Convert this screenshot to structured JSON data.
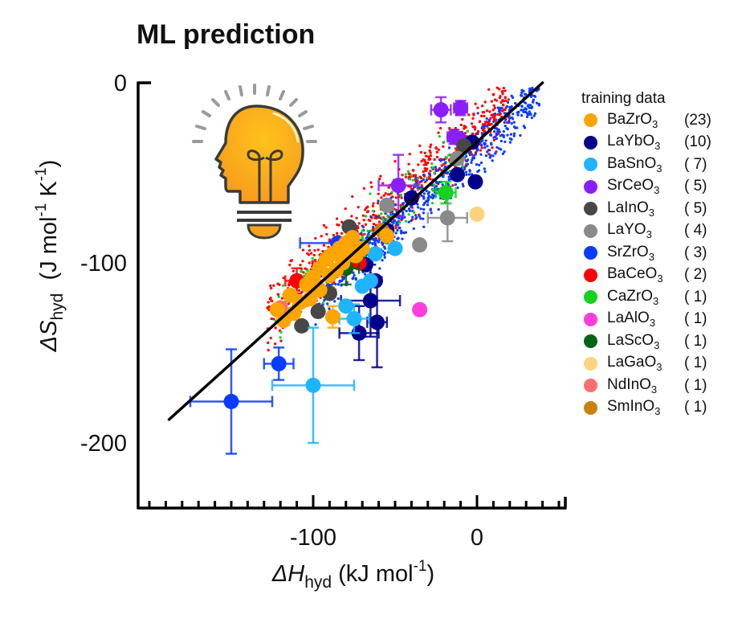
{
  "chart_data": {
    "type": "scatter",
    "title": "ML prediction",
    "xlabel": {
      "symbol": "ΔH",
      "subscript": "hyd",
      "unit": " (kJ mol",
      "unit_sup": "-1",
      "unit_close": ")"
    },
    "ylabel": {
      "symbol": "ΔS",
      "subscript": "hyd",
      "unit": "  (J mol",
      "unit_sup1": "-1",
      "unit_mid": " K",
      "unit_sup2": "-1",
      "unit_close": ")"
    },
    "xlim": [
      -207,
      54
    ],
    "ylim": [
      -236,
      0
    ],
    "x_ticks": [
      {
        "value": -100,
        "label": "-100"
      },
      {
        "value": 0,
        "label": "0"
      }
    ],
    "y_ticks": [
      {
        "value": 0,
        "label": "0"
      },
      {
        "value": -100,
        "label": "-100"
      },
      {
        "value": -200,
        "label": "-200"
      }
    ],
    "x_minor_step": 10,
    "y_minor_step": 10,
    "grid": false,
    "fit_line": {
      "x": [
        -188,
        40
      ],
      "y": [
        -187,
        0
      ],
      "color": "#000000"
    },
    "legend": {
      "title": "training data",
      "placement": "right",
      "entries": [
        {
          "formula": "BaZrO",
          "sub": "3",
          "count": "(23)",
          "color": "#FFA500"
        },
        {
          "formula": "LaYbO",
          "sub": "3",
          "count": "(10)",
          "color": "#00008B"
        },
        {
          "formula": "BaSnO",
          "sub": "3",
          "count": "( 7)",
          "color": "#1EB4FF"
        },
        {
          "formula": "SrCeO",
          "sub": "3",
          "count": "( 5)",
          "color": "#8B1EFF"
        },
        {
          "formula": "LaInO",
          "sub": "3",
          "count": "( 5)",
          "color": "#474747"
        },
        {
          "formula": "LaYO",
          "sub": "3",
          "count": "( 4)",
          "color": "#8A8A8A"
        },
        {
          "formula": "SrZrO",
          "sub": "3",
          "count": "( 3)",
          "color": "#0A3CFF"
        },
        {
          "formula": "BaCeO",
          "sub": "3",
          "count": "( 2)",
          "color": "#FF0000"
        },
        {
          "formula": "CaZrO",
          "sub": "3",
          "count": "( 1)",
          "color": "#14D21E"
        },
        {
          "formula": "LaAlO",
          "sub": "3",
          "count": "( 1)",
          "color": "#FF3CDC"
        },
        {
          "formula": "LaScO",
          "sub": "3",
          "count": "( 1)",
          "color": "#006414"
        },
        {
          "formula": "LaGaO",
          "sub": "3",
          "count": "( 1)",
          "color": "#FFD27D"
        },
        {
          "formula": "NdInO",
          "sub": "3",
          "count": "( 1)",
          "color": "#FF6E6E"
        },
        {
          "formula": "SmInO",
          "sub": "3",
          "count": "( 1)",
          "color": "#C8820A"
        }
      ]
    },
    "cloud": {
      "description": "ML predicted points (small dots) scattered along fit line",
      "series": [
        {
          "name": "BaCeO3 predicted",
          "color": "#FF0000",
          "x_range": [
            -128,
            20
          ],
          "offset": 8,
          "spread": 9,
          "count": 700
        },
        {
          "name": "SrZrO3 predicted",
          "color": "#0A3CFF",
          "x_range": [
            -100,
            38
          ],
          "offset": -4,
          "spread": 7,
          "count": 700
        },
        {
          "name": "CaZrO3 predicted",
          "color": "#14D21E",
          "x_range": [
            -125,
            -5
          ],
          "offset": 2,
          "spread": 8,
          "count": 180
        }
      ]
    },
    "points": [
      {
        "series": "SrCeO3",
        "x": -22,
        "y": -15,
        "xerr": 6,
        "yerr": 7
      },
      {
        "series": "SrCeO3",
        "x": -10,
        "y": -14,
        "xerr": 4,
        "yerr": 4
      },
      {
        "series": "SrCeO3",
        "x": -14,
        "y": -30,
        "xerr": 4,
        "yerr": 4
      },
      {
        "series": "SrCeO3",
        "x": -11,
        "y": -31,
        "xerr": 0,
        "yerr": 0
      },
      {
        "series": "SrCeO3",
        "x": -48,
        "y": -57,
        "xerr": 12,
        "yerr": 17
      },
      {
        "series": "LaYbO3",
        "x": -3,
        "y": -33,
        "xerr": 0,
        "yerr": 0
      },
      {
        "series": "LaYbO3",
        "x": -1,
        "y": -55,
        "xerr": 0,
        "yerr": 0
      },
      {
        "series": "LaYbO3",
        "x": -12,
        "y": -51,
        "xerr": 0,
        "yerr": 0
      },
      {
        "series": "LaYbO3",
        "x": -40,
        "y": -64,
        "xerr": 0,
        "yerr": 0
      },
      {
        "series": "LaYbO3",
        "x": -55,
        "y": -82,
        "xerr": 0,
        "yerr": 0
      },
      {
        "series": "LaYbO3",
        "x": -68,
        "y": -101,
        "xerr": 0,
        "yerr": 0
      },
      {
        "series": "LaYbO3",
        "x": -62,
        "y": -110,
        "xerr": 0,
        "yerr": 0
      },
      {
        "series": "LaYbO3",
        "x": -65,
        "y": -121,
        "xerr": 18,
        "yerr": 20
      },
      {
        "series": "LaYbO3",
        "x": -72,
        "y": -139,
        "xerr": 12,
        "yerr": 15
      },
      {
        "series": "LaYbO3",
        "x": -61,
        "y": -133,
        "xerr": 6,
        "yerr": 25
      },
      {
        "series": "LaInO3",
        "x": -8,
        "y": -35,
        "xerr": 0,
        "yerr": 0
      },
      {
        "series": "LaInO3",
        "x": -78,
        "y": -80,
        "xerr": 0,
        "yerr": 0
      },
      {
        "series": "LaInO3",
        "x": -90,
        "y": -117,
        "xerr": 0,
        "yerr": 0
      },
      {
        "series": "LaInO3",
        "x": -97,
        "y": -127,
        "xerr": 0,
        "yerr": 0
      },
      {
        "series": "LaInO3",
        "x": -107,
        "y": -135,
        "xerr": 0,
        "yerr": 0
      },
      {
        "series": "LaYO3",
        "x": -18,
        "y": -75,
        "xerr": 12,
        "yerr": 13
      },
      {
        "series": "LaYO3",
        "x": -55,
        "y": -68,
        "xerr": 0,
        "yerr": 0
      },
      {
        "series": "LaYO3",
        "x": -12,
        "y": -42,
        "xerr": 0,
        "yerr": 0
      },
      {
        "series": "LaYO3",
        "x": -35,
        "y": -90,
        "xerr": 0,
        "yerr": 0
      },
      {
        "series": "CaZrO3",
        "x": -19,
        "y": -61,
        "xerr": 6,
        "yerr": 6
      },
      {
        "series": "LaGaO3",
        "x": 0,
        "y": -73,
        "xerr": 0,
        "yerr": 0
      },
      {
        "series": "LaAlO3",
        "x": -35,
        "y": -126,
        "xerr": 0,
        "yerr": 0
      },
      {
        "series": "SrZrO3",
        "x": -150,
        "y": -177,
        "xerr": 25,
        "yerr": 29
      },
      {
        "series": "SrZrO3",
        "x": -121,
        "y": -156,
        "xerr": 9,
        "yerr": 9
      },
      {
        "series": "SrZrO3",
        "x": -85,
        "y": -89,
        "xerr": 23,
        "yerr": 0
      },
      {
        "series": "BaSnO3",
        "x": -100,
        "y": -168,
        "xerr": 25,
        "yerr": 32
      },
      {
        "series": "BaSnO3",
        "x": -75,
        "y": -131,
        "xerr": 9,
        "yerr": 8
      },
      {
        "series": "BaSnO3",
        "x": -50,
        "y": -92,
        "xerr": 0,
        "yerr": 0
      },
      {
        "series": "BaSnO3",
        "x": -65,
        "y": -110,
        "xerr": 0,
        "yerr": 0
      },
      {
        "series": "BaSnO3",
        "x": -62,
        "y": -95,
        "xerr": 0,
        "yerr": 0
      },
      {
        "series": "BaSnO3",
        "x": -80,
        "y": -124,
        "xerr": 0,
        "yerr": 0
      },
      {
        "series": "BaSnO3",
        "x": -70,
        "y": -113,
        "xerr": 0,
        "yerr": 0
      },
      {
        "series": "BaCeO3",
        "x": -110,
        "y": -110,
        "xerr": 7,
        "yerr": 7
      },
      {
        "series": "BaCeO3",
        "x": -72,
        "y": -100,
        "xerr": 0,
        "yerr": 0
      },
      {
        "series": "LaScO3",
        "x": -80,
        "y": -103,
        "xerr": 8,
        "yerr": 9
      },
      {
        "series": "NdInO3",
        "x": -120,
        "y": -125,
        "xerr": 0,
        "yerr": 0
      },
      {
        "series": "SmInO3",
        "x": -58,
        "y": -82,
        "xerr": 0,
        "yerr": 0
      },
      {
        "series": "BaZrO3",
        "x": -122,
        "y": -126,
        "xerr": 0,
        "yerr": 0
      },
      {
        "series": "BaZrO3",
        "x": -118,
        "y": -132,
        "xerr": 0,
        "yerr": 0
      },
      {
        "series": "BaZrO3",
        "x": -114,
        "y": -118,
        "xerr": 0,
        "yerr": 0
      },
      {
        "series": "BaZrO3",
        "x": -108,
        "y": -122,
        "xerr": 0,
        "yerr": 0
      },
      {
        "series": "BaZrO3",
        "x": -104,
        "y": -112,
        "xerr": 0,
        "yerr": 0
      },
      {
        "series": "BaZrO3",
        "x": -100,
        "y": -108,
        "xerr": 0,
        "yerr": 0
      },
      {
        "series": "BaZrO3",
        "x": -96,
        "y": -103,
        "xerr": 0,
        "yerr": 0
      },
      {
        "series": "BaZrO3",
        "x": -92,
        "y": -98,
        "xerr": 0,
        "yerr": 0
      },
      {
        "series": "BaZrO3",
        "x": -88,
        "y": -95,
        "xerr": 0,
        "yerr": 0
      },
      {
        "series": "BaZrO3",
        "x": -84,
        "y": -92,
        "xerr": 0,
        "yerr": 0
      },
      {
        "series": "BaZrO3",
        "x": -80,
        "y": -89,
        "xerr": 0,
        "yerr": 0
      },
      {
        "series": "BaZrO3",
        "x": -76,
        "y": -86,
        "xerr": 0,
        "yerr": 0
      },
      {
        "series": "BaZrO3",
        "x": -90,
        "y": -107,
        "xerr": 0,
        "yerr": 0
      },
      {
        "series": "BaZrO3",
        "x": -86,
        "y": -104,
        "xerr": 0,
        "yerr": 0
      },
      {
        "series": "BaZrO3",
        "x": -82,
        "y": -100,
        "xerr": 0,
        "yerr": 0
      },
      {
        "series": "BaZrO3",
        "x": -96,
        "y": -115,
        "xerr": 0,
        "yerr": 0
      },
      {
        "series": "BaZrO3",
        "x": -78,
        "y": -93,
        "xerr": 0,
        "yerr": 0
      },
      {
        "series": "BaZrO3",
        "x": -74,
        "y": -96,
        "xerr": 0,
        "yerr": 0
      },
      {
        "series": "BaZrO3",
        "x": -70,
        "y": -92,
        "xerr": 0,
        "yerr": 0
      },
      {
        "series": "BaZrO3",
        "x": -55,
        "y": -85,
        "xerr": 0,
        "yerr": 0
      },
      {
        "series": "BaZrO3",
        "x": -88,
        "y": -130,
        "xerr": 0,
        "yerr": 6
      },
      {
        "series": "BaZrO3",
        "x": -102,
        "y": -120,
        "xerr": 0,
        "yerr": 0
      },
      {
        "series": "BaZrO3",
        "x": -112,
        "y": -128,
        "xerr": 0,
        "yerr": 0
      }
    ]
  }
}
